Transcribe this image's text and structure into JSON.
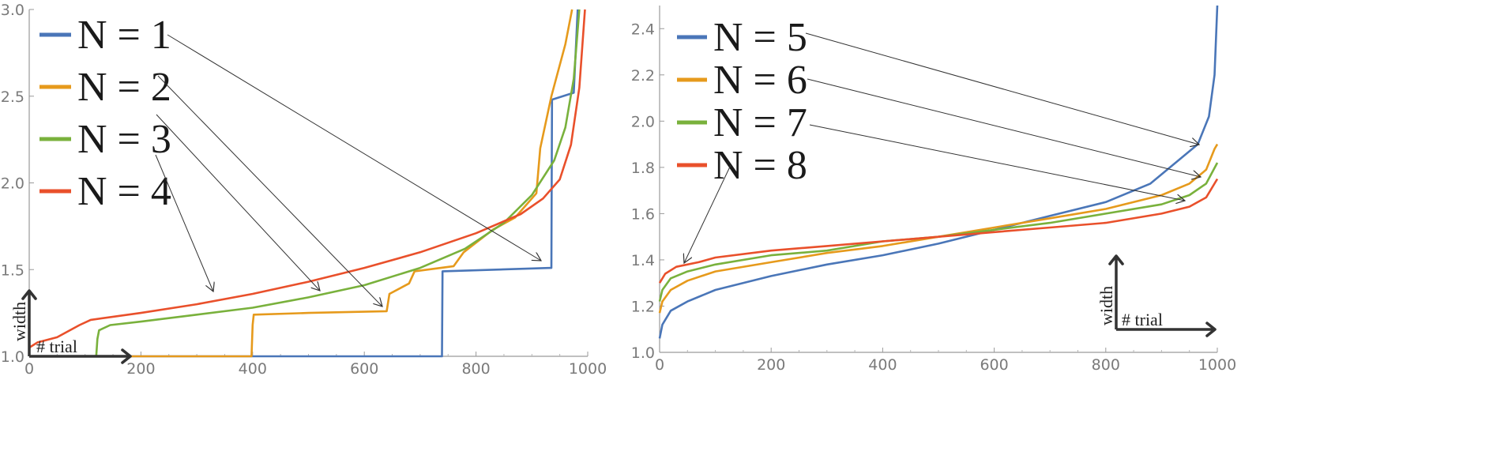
{
  "chart_data": [
    {
      "type": "line",
      "xlim": [
        0,
        1000
      ],
      "ylim": [
        1.0,
        3.0
      ],
      "xticks": [
        0,
        200,
        400,
        600,
        800,
        1000
      ],
      "yticks": [
        1.0,
        1.5,
        2.0,
        2.5,
        3.0
      ],
      "xtick_labels": [
        "0",
        "200",
        "400",
        "600",
        "800",
        "1000"
      ],
      "ytick_labels": [
        "1.0",
        "1.5",
        "2.0",
        "2.5",
        "3.0"
      ],
      "xlabel": "# trial",
      "ylabel": "width",
      "legend_position": "top-left",
      "series": [
        {
          "name": "N = 1",
          "color": "#4a76b8",
          "points": [
            [
              0,
              1.0
            ],
            [
              739,
              1.0
            ],
            [
              740,
              1.49
            ],
            [
              935,
              1.51
            ],
            [
              936,
              2.48
            ],
            [
              975,
              2.52
            ],
            [
              982,
              3.0
            ]
          ]
        },
        {
          "name": "N = 2",
          "color": "#e69a1c",
          "points": [
            [
              0,
              1.0
            ],
            [
              398,
              1.0
            ],
            [
              400,
              1.18
            ],
            [
              402,
              1.24
            ],
            [
              500,
              1.25
            ],
            [
              640,
              1.26
            ],
            [
              645,
              1.36
            ],
            [
              680,
              1.42
            ],
            [
              690,
              1.49
            ],
            [
              760,
              1.52
            ],
            [
              778,
              1.6
            ],
            [
              790,
              1.63
            ],
            [
              830,
              1.73
            ],
            [
              870,
              1.8
            ],
            [
              908,
              1.94
            ],
            [
              915,
              2.2
            ],
            [
              935,
              2.5
            ],
            [
              960,
              2.8
            ],
            [
              972,
              3.0
            ]
          ]
        },
        {
          "name": "N = 3",
          "color": "#79b13c",
          "points": [
            [
              0,
              1.0
            ],
            [
              120,
              1.0
            ],
            [
              122,
              1.1
            ],
            [
              125,
              1.15
            ],
            [
              145,
              1.18
            ],
            [
              200,
              1.2
            ],
            [
              300,
              1.24
            ],
            [
              400,
              1.28
            ],
            [
              500,
              1.34
            ],
            [
              600,
              1.41
            ],
            [
              700,
              1.51
            ],
            [
              780,
              1.62
            ],
            [
              850,
              1.77
            ],
            [
              900,
              1.93
            ],
            [
              940,
              2.13
            ],
            [
              960,
              2.32
            ],
            [
              975,
              2.6
            ],
            [
              985,
              3.0
            ]
          ]
        },
        {
          "name": "N = 4",
          "color": "#e9502b",
          "points": [
            [
              0,
              1.05
            ],
            [
              15,
              1.08
            ],
            [
              50,
              1.11
            ],
            [
              90,
              1.18
            ],
            [
              110,
              1.21
            ],
            [
              200,
              1.25
            ],
            [
              300,
              1.3
            ],
            [
              400,
              1.36
            ],
            [
              500,
              1.43
            ],
            [
              600,
              1.51
            ],
            [
              700,
              1.6
            ],
            [
              800,
              1.71
            ],
            [
              880,
              1.82
            ],
            [
              920,
              1.91
            ],
            [
              950,
              2.02
            ],
            [
              970,
              2.22
            ],
            [
              985,
              2.55
            ],
            [
              995,
              3.0
            ]
          ]
        }
      ]
    },
    {
      "type": "line",
      "xlim": [
        0,
        1000
      ],
      "ylim": [
        1.0,
        2.5
      ],
      "xticks": [
        0,
        200,
        400,
        600,
        800,
        1000
      ],
      "yticks": [
        1.0,
        1.2,
        1.4,
        1.6,
        1.8,
        2.0,
        2.2,
        2.4
      ],
      "xtick_labels": [
        "0",
        "200",
        "400",
        "600",
        "800",
        "1000"
      ],
      "ytick_labels": [
        "1.0",
        "1.2",
        "1.4",
        "1.6",
        "1.8",
        "2.0",
        "2.2",
        "2.4"
      ],
      "xlabel": "# trial",
      "ylabel": "width",
      "legend_position": "top-left",
      "series": [
        {
          "name": "N = 5",
          "color": "#4a76b8",
          "points": [
            [
              0,
              1.06
            ],
            [
              5,
              1.12
            ],
            [
              20,
              1.18
            ],
            [
              50,
              1.22
            ],
            [
              100,
              1.27
            ],
            [
              200,
              1.33
            ],
            [
              300,
              1.38
            ],
            [
              400,
              1.42
            ],
            [
              500,
              1.47
            ],
            [
              600,
              1.53
            ],
            [
              700,
              1.59
            ],
            [
              800,
              1.65
            ],
            [
              880,
              1.73
            ],
            [
              930,
              1.83
            ],
            [
              965,
              1.9
            ],
            [
              985,
              2.02
            ],
            [
              995,
              2.2
            ],
            [
              1000,
              2.5
            ]
          ]
        },
        {
          "name": "N = 6",
          "color": "#e69a1c",
          "points": [
            [
              0,
              1.17
            ],
            [
              5,
              1.22
            ],
            [
              20,
              1.27
            ],
            [
              50,
              1.31
            ],
            [
              100,
              1.35
            ],
            [
              200,
              1.39
            ],
            [
              300,
              1.43
            ],
            [
              400,
              1.46
            ],
            [
              500,
              1.5
            ],
            [
              600,
              1.54
            ],
            [
              700,
              1.58
            ],
            [
              800,
              1.62
            ],
            [
              900,
              1.68
            ],
            [
              950,
              1.73
            ],
            [
              980,
              1.79
            ],
            [
              995,
              1.88
            ],
            [
              1000,
              1.9
            ]
          ]
        },
        {
          "name": "N = 7",
          "color": "#79b13c",
          "points": [
            [
              0,
              1.22
            ],
            [
              5,
              1.27
            ],
            [
              20,
              1.32
            ],
            [
              50,
              1.35
            ],
            [
              100,
              1.38
            ],
            [
              200,
              1.42
            ],
            [
              300,
              1.44
            ],
            [
              400,
              1.48
            ],
            [
              500,
              1.5
            ],
            [
              600,
              1.53
            ],
            [
              700,
              1.56
            ],
            [
              800,
              1.6
            ],
            [
              900,
              1.64
            ],
            [
              950,
              1.68
            ],
            [
              980,
              1.73
            ],
            [
              1000,
              1.82
            ]
          ]
        },
        {
          "name": "N = 8",
          "color": "#e9502b",
          "points": [
            [
              0,
              1.3
            ],
            [
              10,
              1.34
            ],
            [
              30,
              1.37
            ],
            [
              70,
              1.39
            ],
            [
              100,
              1.41
            ],
            [
              200,
              1.44
            ],
            [
              300,
              1.46
            ],
            [
              400,
              1.48
            ],
            [
              500,
              1.5
            ],
            [
              600,
              1.52
            ],
            [
              700,
              1.54
            ],
            [
              800,
              1.56
            ],
            [
              900,
              1.6
            ],
            [
              950,
              1.63
            ],
            [
              980,
              1.67
            ],
            [
              1000,
              1.75
            ]
          ]
        }
      ]
    }
  ]
}
